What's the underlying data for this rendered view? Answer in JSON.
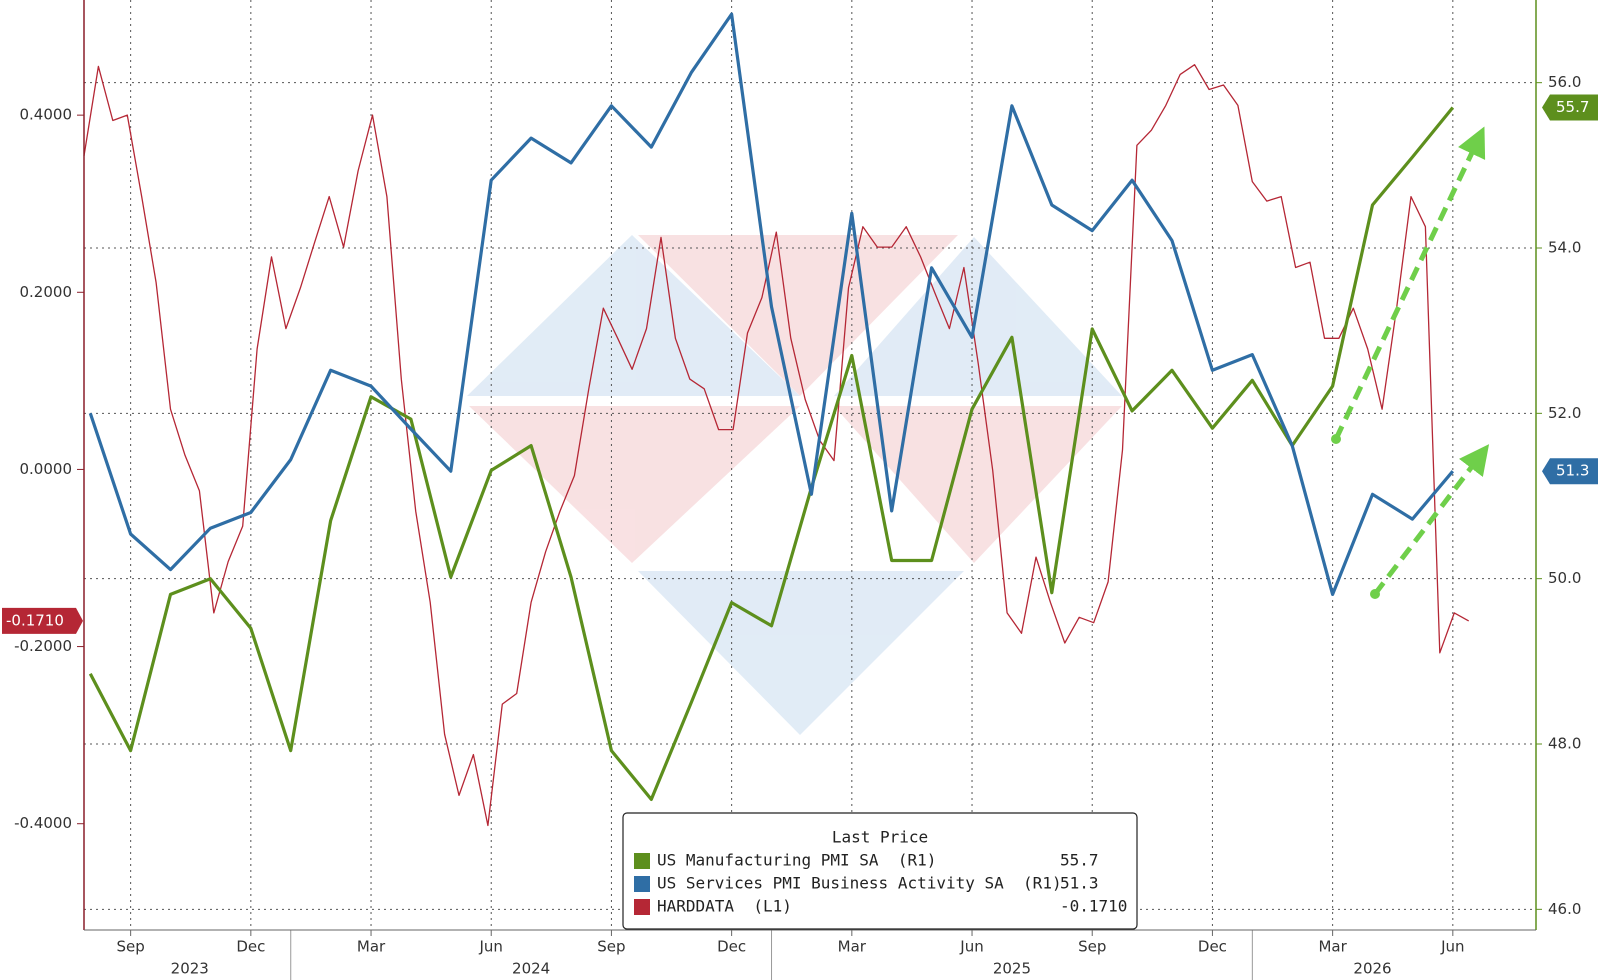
{
  "chart_data": {
    "type": "line",
    "legend_title": "Last Price",
    "legend_position": "bottom",
    "grid": true,
    "xlim": [
      2023.57,
      2026.59
    ],
    "xticks": [
      {
        "value": 2023.667,
        "label": "Sep"
      },
      {
        "value": 2023.917,
        "label": "Dec"
      },
      {
        "value": 2024.167,
        "label": "Mar"
      },
      {
        "value": 2024.417,
        "label": "Jun"
      },
      {
        "value": 2024.667,
        "label": "Sep"
      },
      {
        "value": 2024.917,
        "label": "Dec"
      },
      {
        "value": 2025.167,
        "label": "Mar"
      },
      {
        "value": 2025.417,
        "label": "Jun"
      },
      {
        "value": 2025.667,
        "label": "Sep"
      },
      {
        "value": 2025.917,
        "label": "Dec"
      },
      {
        "value": 2026.167,
        "label": "Mar"
      },
      {
        "value": 2026.417,
        "label": "Jun"
      }
    ],
    "x_year_labels": [
      {
        "value": 2023.79,
        "label": "2023"
      },
      {
        "value": 2024.5,
        "label": "2024"
      },
      {
        "value": 2025.5,
        "label": "2025"
      },
      {
        "value": 2026.25,
        "label": "2026"
      }
    ],
    "x_year_ticks": [
      2024,
      2025,
      2026
    ],
    "ylim": [
      -0.52,
      0.53
    ],
    "yticks": [
      {
        "value": -0.4,
        "label": "-0.4000"
      },
      {
        "value": -0.2,
        "label": "-0.2000"
      },
      {
        "value": 0,
        "label": "0.0000"
      },
      {
        "value": 0.2,
        "label": "0.2000"
      },
      {
        "value": 0.4,
        "label": "0.4000"
      }
    ],
    "y2lim": [
      45.75,
      57.0
    ],
    "y2ticks": [
      {
        "value": 46,
        "label": "46.0"
      },
      {
        "value": 48,
        "label": "48.0"
      },
      {
        "value": 50,
        "label": "50.0"
      },
      {
        "value": 52,
        "label": "52.0"
      },
      {
        "value": 54,
        "label": "54.0"
      },
      {
        "value": 56,
        "label": "56.0"
      }
    ],
    "series": [
      {
        "name": "US Manufacturing PMI SA  (R1)",
        "color": "#5d8f1d",
        "axis": "y2",
        "x": [
          2023.583,
          2023.667,
          2023.75,
          2023.833,
          2023.917,
          2024.0,
          2024.083,
          2024.167,
          2024.25,
          2024.333,
          2024.417,
          2024.5,
          2024.583,
          2024.667,
          2024.75,
          2024.833,
          2024.917,
          2025.0,
          2025.083,
          2025.167,
          2025.25,
          2025.333,
          2025.417,
          2025.5,
          2025.583,
          2025.667,
          2025.75,
          2025.833,
          2025.917,
          2026.0,
          2026.083,
          2026.167,
          2026.25,
          2026.333,
          2026.417
        ],
        "values": [
          48.85,
          47.92,
          49.81,
          50.0,
          49.4,
          47.92,
          50.7,
          52.2,
          51.93,
          50.02,
          51.31,
          51.61,
          50.02,
          47.92,
          47.33,
          48.5,
          49.71,
          49.43,
          51.1,
          52.7,
          50.22,
          50.22,
          52.05,
          52.92,
          49.83,
          53.02,
          52.03,
          52.52,
          51.82,
          52.4,
          51.61,
          52.33,
          54.52,
          55.1,
          55.7
        ]
      },
      {
        "name": "US Services PMI Business Activity SA  (R1)",
        "color": "#2f6ea5",
        "axis": "y2",
        "x": [
          2023.583,
          2023.667,
          2023.75,
          2023.833,
          2023.917,
          2024.0,
          2024.083,
          2024.167,
          2024.25,
          2024.333,
          2024.417,
          2024.5,
          2024.583,
          2024.667,
          2024.75,
          2024.833,
          2024.917,
          2025.0,
          2025.083,
          2025.167,
          2025.25,
          2025.333,
          2025.417,
          2025.5,
          2025.583,
          2025.667,
          2025.75,
          2025.833,
          2025.917,
          2026.0,
          2026.083,
          2026.167,
          2026.25,
          2026.333,
          2026.417
        ],
        "values": [
          52.0,
          50.54,
          50.11,
          50.61,
          50.8,
          51.44,
          52.52,
          52.33,
          51.81,
          51.3,
          54.82,
          55.33,
          55.03,
          55.72,
          55.22,
          56.12,
          56.83,
          53.29,
          51.02,
          54.42,
          50.82,
          53.76,
          52.92,
          55.72,
          54.52,
          54.21,
          54.82,
          54.09,
          52.52,
          52.71,
          51.61,
          49.81,
          51.02,
          50.72,
          51.3
        ]
      },
      {
        "name": "HARDDATA  (L1)",
        "color": "#b52735",
        "axis": "y",
        "x": [
          2023.57,
          2023.6,
          2023.63,
          2023.66,
          2023.69,
          2023.72,
          2023.75,
          2023.78,
          2023.81,
          2023.84,
          2023.87,
          2023.9,
          2023.93,
          2023.96,
          2023.99,
          2024.02,
          2024.05,
          2024.08,
          2024.11,
          2024.14,
          2024.17,
          2024.2,
          2024.23,
          2024.26,
          2024.29,
          2024.32,
          2024.35,
          2024.38,
          2024.41,
          2024.44,
          2024.47,
          2024.5,
          2024.53,
          2024.56,
          2024.59,
          2024.62,
          2024.65,
          2024.68,
          2024.71,
          2024.74,
          2024.77,
          2024.8,
          2024.83,
          2024.86,
          2024.89,
          2024.92,
          2024.95,
          2024.98,
          2025.01,
          2025.04,
          2025.07,
          2025.1,
          2025.13,
          2025.16,
          2025.19,
          2025.22,
          2025.25,
          2025.28,
          2025.31,
          2025.34,
          2025.37,
          2025.4,
          2025.43,
          2025.46,
          2025.49,
          2025.52,
          2025.55,
          2025.58,
          2025.61,
          2025.64,
          2025.67,
          2025.7,
          2025.73,
          2025.76,
          2025.79,
          2025.82,
          2025.85,
          2025.88,
          2025.91,
          2025.94,
          2025.97,
          2026.0,
          2026.03,
          2026.06,
          2026.09,
          2026.12,
          2026.15,
          2026.18,
          2026.21,
          2026.24,
          2026.27,
          2026.3,
          2026.33,
          2026.36,
          2026.39,
          2026.42,
          2026.45
        ],
        "values": [
          0.354,
          0.455,
          0.394,
          0.4,
          0.308,
          0.211,
          0.068,
          0.016,
          -0.024,
          -0.162,
          -0.104,
          -0.064,
          0.136,
          0.24,
          0.159,
          0.205,
          0.257,
          0.308,
          0.251,
          0.337,
          0.4,
          0.308,
          0.102,
          -0.047,
          -0.15,
          -0.299,
          -0.368,
          -0.322,
          -0.402,
          -0.265,
          -0.253,
          -0.15,
          -0.093,
          -0.047,
          -0.007,
          0.091,
          0.182,
          0.148,
          0.113,
          0.159,
          0.262,
          0.148,
          0.102,
          0.091,
          0.045,
          0.045,
          0.154,
          0.194,
          0.268,
          0.148,
          0.079,
          0.033,
          0.01,
          0.205,
          0.274,
          0.251,
          0.251,
          0.274,
          0.24,
          0.199,
          0.159,
          0.228,
          0.119,
          -0.001,
          -0.162,
          -0.185,
          -0.099,
          -0.15,
          -0.196,
          -0.167,
          -0.173,
          -0.127,
          0.022,
          0.366,
          0.383,
          0.411,
          0.446,
          0.457,
          0.429,
          0.434,
          0.411,
          0.325,
          0.303,
          0.308,
          0.228,
          0.234,
          0.148,
          0.148,
          0.182,
          0.136,
          0.068,
          0.182,
          0.308,
          0.274,
          -0.207,
          -0.162,
          -0.171
        ],
        "value_labels": [
          null,
          null,
          null,
          null,
          null,
          null,
          null,
          null,
          null,
          null,
          null,
          null,
          null,
          null,
          null,
          null,
          null,
          null,
          null,
          null,
          null,
          null,
          null,
          null,
          null,
          null,
          null,
          null,
          null,
          null,
          null,
          null,
          null,
          null,
          null,
          null,
          null,
          null,
          null,
          null,
          null,
          null,
          null,
          null,
          null,
          null,
          null,
          null,
          null,
          null,
          null,
          null,
          null,
          null,
          null,
          null,
          null,
          null,
          null,
          null,
          null,
          null,
          null,
          null,
          null,
          null,
          null,
          null,
          null,
          null,
          null,
          null,
          null,
          null,
          null,
          null,
          null,
          null,
          null,
          null,
          null,
          null,
          null,
          null,
          null,
          null,
          null,
          null,
          null,
          null,
          null,
          null,
          null,
          null,
          null,
          null,
          "-0.1710"
        ]
      }
    ]
  }
}
